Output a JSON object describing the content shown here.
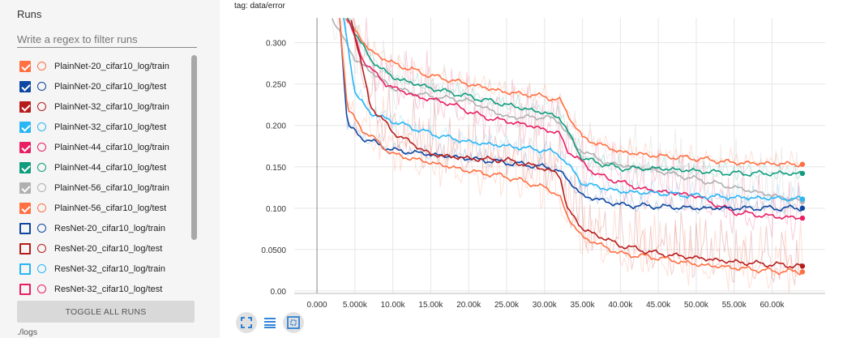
{
  "sidebar": {
    "title": "Runs",
    "filter_placeholder": "Write a regex to filter runs",
    "runs": [
      {
        "label": "PlainNet-20_cifar10_log/train",
        "color": "#ff7043",
        "checked": true
      },
      {
        "label": "PlainNet-20_cifar10_log/test",
        "color": "#0d47a1",
        "checked": true
      },
      {
        "label": "PlainNet-32_cifar10_log/train",
        "color": "#b71c1c",
        "checked": true
      },
      {
        "label": "PlainNet-32_cifar10_log/test",
        "color": "#29b6f6",
        "checked": true
      },
      {
        "label": "PlainNet-44_cifar10_log/train",
        "color": "#e91e63",
        "checked": true
      },
      {
        "label": "PlainNet-44_cifar10_log/test",
        "color": "#0f9d7e",
        "checked": true
      },
      {
        "label": "PlainNet-56_cifar10_log/train",
        "color": "#b0b0b0",
        "checked": true
      },
      {
        "label": "PlainNet-56_cifar10_log/test",
        "color": "#ff7043",
        "checked": true
      },
      {
        "label": "ResNet-20_cifar10_log/train",
        "color": "#0d47a1",
        "checked": false
      },
      {
        "label": "ResNet-20_cifar10_log/test",
        "color": "#b71c1c",
        "checked": false
      },
      {
        "label": "ResNet-32_cifar10_log/train",
        "color": "#29b6f6",
        "checked": false
      },
      {
        "label": "ResNet-32_cifar10_log/test",
        "color": "#e91e63",
        "checked": false
      }
    ],
    "toggle_all_label": "TOGGLE ALL RUNS",
    "log_dir": "./logs"
  },
  "chart_data": {
    "type": "line",
    "title": "tag: data/error",
    "xlabel": "",
    "ylabel": "",
    "xlim": [
      -3000,
      67000
    ],
    "ylim": [
      -0.003,
      0.33
    ],
    "xticks": [
      0,
      5000,
      10000,
      15000,
      20000,
      25000,
      30000,
      35000,
      40000,
      45000,
      50000,
      55000,
      60000
    ],
    "xtick_labels": [
      "0.000",
      "5.000k",
      "10.00k",
      "15.00k",
      "20.00k",
      "25.00k",
      "30.00k",
      "35.00k",
      "40.00k",
      "45.00k",
      "50.00k",
      "55.00k",
      "60.00k"
    ],
    "yticks": [
      0.0,
      0.05,
      0.1,
      0.15,
      0.2,
      0.25,
      0.3
    ],
    "ytick_labels": [
      "0.00",
      "0.0500",
      "0.100",
      "0.150",
      "0.200",
      "0.250",
      "0.300"
    ],
    "grid": true,
    "series": [
      {
        "name": "PlainNet-56_cifar10_log/train",
        "color": "#b0b0b0",
        "smooth": true,
        "points": [
          [
            2000,
            0.33
          ],
          [
            5000,
            0.28
          ],
          [
            10000,
            0.245
          ],
          [
            15000,
            0.235
          ],
          [
            20000,
            0.23
          ],
          [
            25000,
            0.21
          ],
          [
            30000,
            0.21
          ],
          [
            32000,
            0.205
          ],
          [
            34000,
            0.175
          ],
          [
            38000,
            0.155
          ],
          [
            45000,
            0.145
          ],
          [
            55000,
            0.125
          ],
          [
            64000,
            0.108
          ]
        ]
      },
      {
        "name": "PlainNet-56_cifar10_log/test",
        "color": "#ff7043",
        "smooth": false,
        "points": [
          [
            3800,
            0.33
          ],
          [
            7000,
            0.29
          ],
          [
            10000,
            0.275
          ],
          [
            15000,
            0.26
          ],
          [
            20000,
            0.25
          ],
          [
            25000,
            0.24
          ],
          [
            30000,
            0.235
          ],
          [
            32000,
            0.23
          ],
          [
            35000,
            0.185
          ],
          [
            40000,
            0.168
          ],
          [
            45000,
            0.163
          ],
          [
            50000,
            0.16
          ],
          [
            55000,
            0.155
          ],
          [
            64000,
            0.153
          ]
        ]
      },
      {
        "name": "PlainNet-44_cifar10_log/test",
        "color": "#0f9d7e",
        "smooth": false,
        "points": [
          [
            4000,
            0.33
          ],
          [
            7000,
            0.28
          ],
          [
            10000,
            0.258
          ],
          [
            15000,
            0.245
          ],
          [
            20000,
            0.235
          ],
          [
            25000,
            0.225
          ],
          [
            30000,
            0.215
          ],
          [
            32000,
            0.21
          ],
          [
            35000,
            0.16
          ],
          [
            40000,
            0.148
          ],
          [
            45000,
            0.148
          ],
          [
            50000,
            0.145
          ],
          [
            55000,
            0.142
          ],
          [
            64000,
            0.142
          ]
        ]
      },
      {
        "name": "PlainNet-44_cifar10_log/train",
        "color": "#e91e63",
        "smooth": true,
        "points": [
          [
            4000,
            0.33
          ],
          [
            6000,
            0.28
          ],
          [
            9000,
            0.25
          ],
          [
            13000,
            0.235
          ],
          [
            17000,
            0.228
          ],
          [
            22000,
            0.21
          ],
          [
            28000,
            0.2
          ],
          [
            32000,
            0.19
          ],
          [
            33000,
            0.17
          ],
          [
            37000,
            0.14
          ],
          [
            43000,
            0.123
          ],
          [
            50000,
            0.115
          ],
          [
            55000,
            0.095
          ],
          [
            60000,
            0.09
          ],
          [
            64000,
            0.088
          ]
        ]
      },
      {
        "name": "PlainNet-32_cifar10_log/test",
        "color": "#29b6f6",
        "smooth": false,
        "points": [
          [
            3500,
            0.33
          ],
          [
            5000,
            0.24
          ],
          [
            7000,
            0.215
          ],
          [
            10000,
            0.205
          ],
          [
            15000,
            0.19
          ],
          [
            20000,
            0.18
          ],
          [
            25000,
            0.175
          ],
          [
            30000,
            0.17
          ],
          [
            32000,
            0.165
          ],
          [
            35000,
            0.13
          ],
          [
            40000,
            0.12
          ],
          [
            45000,
            0.118
          ],
          [
            50000,
            0.115
          ],
          [
            55000,
            0.113
          ],
          [
            64000,
            0.111
          ]
        ]
      },
      {
        "name": "PlainNet-20_cifar10_log/test",
        "color": "#0d47a1",
        "smooth": false,
        "points": [
          [
            3000,
            0.33
          ],
          [
            4000,
            0.2
          ],
          [
            6000,
            0.185
          ],
          [
            10000,
            0.17
          ],
          [
            15000,
            0.165
          ],
          [
            20000,
            0.16
          ],
          [
            25000,
            0.155
          ],
          [
            30000,
            0.15
          ],
          [
            32000,
            0.145
          ],
          [
            35000,
            0.115
          ],
          [
            40000,
            0.104
          ],
          [
            45000,
            0.102
          ],
          [
            50000,
            0.1
          ],
          [
            55000,
            0.1
          ],
          [
            64000,
            0.1
          ]
        ]
      },
      {
        "name": "PlainNet-32_cifar10_log/train",
        "color": "#b71c1c",
        "smooth": true,
        "points": [
          [
            4500,
            0.33
          ],
          [
            7000,
            0.225
          ],
          [
            10000,
            0.192
          ],
          [
            15000,
            0.165
          ],
          [
            20000,
            0.16
          ],
          [
            25000,
            0.158
          ],
          [
            30000,
            0.148
          ],
          [
            32000,
            0.14
          ],
          [
            33000,
            0.1
          ],
          [
            35000,
            0.075
          ],
          [
            40000,
            0.055
          ],
          [
            45000,
            0.045
          ],
          [
            50000,
            0.04
          ],
          [
            55000,
            0.035
          ],
          [
            60000,
            0.032
          ],
          [
            64000,
            0.03
          ]
        ]
      },
      {
        "name": "PlainNet-20_cifar10_log/train",
        "color": "#ff7043",
        "smooth": true,
        "points": [
          [
            3000,
            0.33
          ],
          [
            4000,
            0.22
          ],
          [
            6000,
            0.195
          ],
          [
            10000,
            0.165
          ],
          [
            15000,
            0.155
          ],
          [
            20000,
            0.145
          ],
          [
            25000,
            0.138
          ],
          [
            30000,
            0.125
          ],
          [
            32000,
            0.115
          ],
          [
            33000,
            0.09
          ],
          [
            35000,
            0.065
          ],
          [
            40000,
            0.045
          ],
          [
            45000,
            0.04
          ],
          [
            50000,
            0.032
          ],
          [
            55000,
            0.028
          ],
          [
            60000,
            0.024
          ],
          [
            64000,
            0.023
          ]
        ]
      }
    ]
  },
  "toolbar": {
    "fit_icon": "fit-domain-icon",
    "log_icon": "log-scale-icon",
    "expand_icon": "expand-icon"
  }
}
